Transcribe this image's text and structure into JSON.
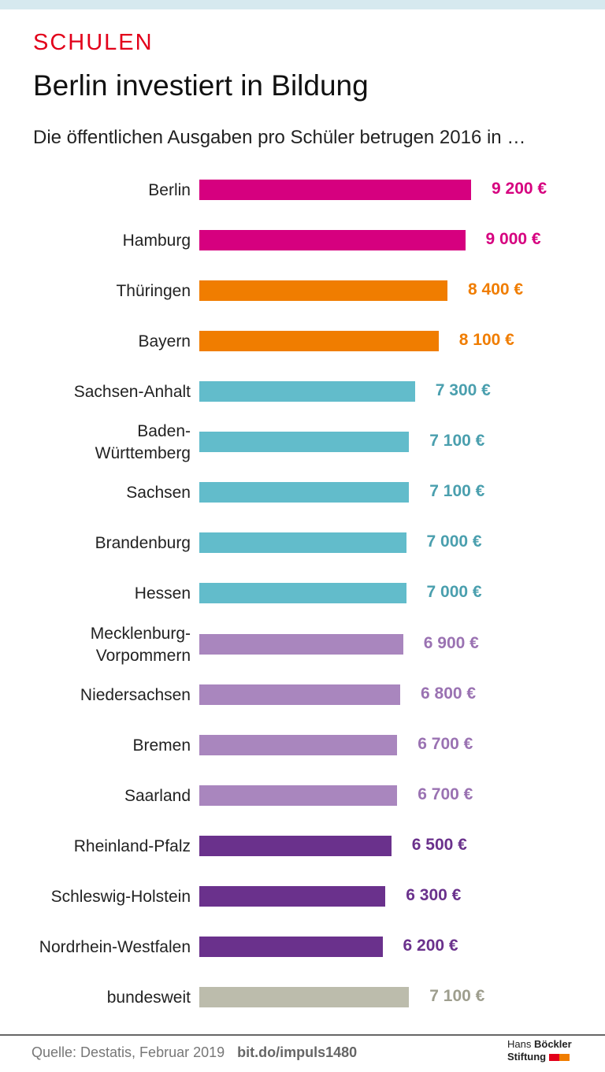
{
  "header": {
    "kicker": "SCHULEN",
    "title": "Berlin investiert in Bildung",
    "subtitle": "Die öffentlichen Ausgaben pro Schüler betrugen 2016 in …"
  },
  "chart_data": {
    "type": "bar",
    "orientation": "horizontal",
    "unit": "€",
    "categories": [
      "Berlin",
      "Hamburg",
      "Thüringen",
      "Bayern",
      "Sachsen-Anhalt",
      "Baden-\nWürttemberg",
      "Sachsen",
      "Brandenburg",
      "Hessen",
      "Mecklenburg-\nVorpommern",
      "Niedersachsen",
      "Bremen",
      "Saarland",
      "Rheinland-Pfalz",
      "Schleswig-Holstein",
      "Nordrhein-Westfalen",
      "bundesweit"
    ],
    "values": [
      9200,
      9000,
      8400,
      8100,
      7300,
      7100,
      7100,
      7000,
      7000,
      6900,
      6800,
      6700,
      6700,
      6500,
      6300,
      6200,
      7100
    ],
    "value_labels": [
      "9 200 €",
      "9 000 €",
      "8 400 €",
      "8 100 €",
      "7 300 €",
      "7 100 €",
      "7 100 €",
      "7 000 €",
      "7 000 €",
      "6 900 €",
      "6 800 €",
      "6 700 €",
      "6 700 €",
      "6 500 €",
      "6 300 €",
      "6 200 €",
      "7 100 €"
    ],
    "colors": [
      "#d6007f",
      "#d6007f",
      "#f07d00",
      "#f07d00",
      "#62bccb",
      "#62bccb",
      "#62bccb",
      "#62bccb",
      "#62bccb",
      "#a986be",
      "#a986be",
      "#a986be",
      "#a986be",
      "#6a318c",
      "#6a318c",
      "#6a318c",
      "#bcbcac"
    ],
    "label_colors": [
      "#d6007f",
      "#d6007f",
      "#f07d00",
      "#f07d00",
      "#4a9fae",
      "#4a9fae",
      "#4a9fae",
      "#4a9fae",
      "#4a9fae",
      "#9a72b2",
      "#9a72b2",
      "#9a72b2",
      "#9a72b2",
      "#6a318c",
      "#6a318c",
      "#6a318c",
      "#9e9e8e"
    ],
    "xlim": [
      0,
      9200
    ],
    "grid": false
  },
  "footer": {
    "source": "Quelle: Destatis, Februar 2019",
    "link": "bit.do/impuls1480",
    "logo_line1_a": "Hans",
    "logo_line1_b": "Böckler",
    "logo_line2": "Stiftung",
    "logo_colors": [
      "#e2001a",
      "#f07d00"
    ]
  }
}
